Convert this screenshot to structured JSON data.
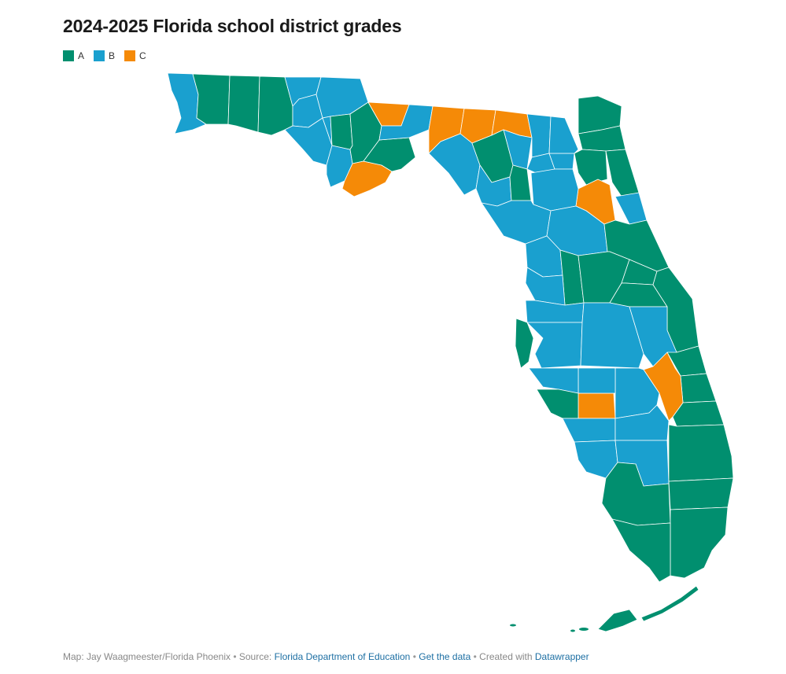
{
  "title": "2024-2025 Florida school district grades",
  "legend": [
    {
      "label": "A",
      "color": "#018f6f"
    },
    {
      "label": "B",
      "color": "#1aa0cf"
    },
    {
      "label": "C",
      "color": "#f58a07"
    }
  ],
  "footer": {
    "credit": "Map: Jay Waagmeester/Florida Phoenix",
    "source_prefix": "Source:",
    "source_link": "Florida Department of Education",
    "get_data": "Get the data",
    "created_prefix": "Created with",
    "created_link": "Datawrapper",
    "separator": "•"
  },
  "colors": {
    "A": "#018f6f",
    "B": "#1aa0cf",
    "C": "#f58a07"
  }
}
